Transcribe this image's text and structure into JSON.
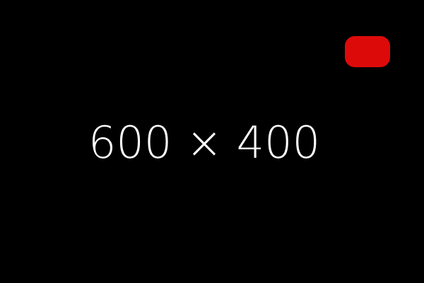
{
  "placeholder": {
    "label": "600 × 400"
  },
  "badge": {
    "color": "#dd0a0a",
    "icon": "red-rounded-badge-icon"
  },
  "background": {
    "color": "#000000"
  }
}
